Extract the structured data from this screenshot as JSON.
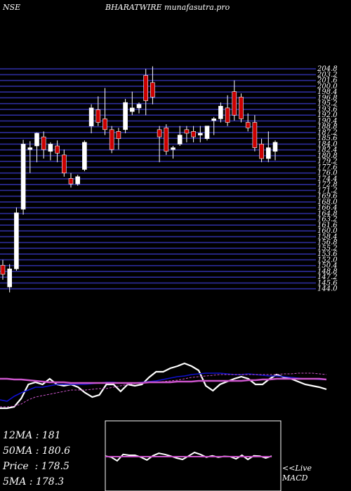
{
  "header": {
    "exchange": "NSE",
    "title": "BHARATWIRE munafasutra.pro"
  },
  "stats": [
    {
      "label": "12MA",
      "value": "181"
    },
    {
      "label": "50MA",
      "value": "180.6"
    },
    {
      "label": "Price",
      "value": "178.5"
    },
    {
      "label": "5MA",
      "value": "178.3"
    }
  ],
  "macd_label": {
    "line1": "<<Live",
    "line2": "MACD"
  },
  "colors": {
    "background": "#000000",
    "gridline": "#2d2d9c",
    "candle_up": "#ffffff",
    "candle_down": "#cc0000",
    "ma_short": "#ffffff",
    "ma_mid": "#1010d0",
    "ma_long": "#cc55cc",
    "macd_box": "#ffffff",
    "macd_signal": "#cc55cc"
  },
  "chart_data": [
    {
      "type": "candlestick",
      "ylim": [
        142,
        206
      ],
      "price_labels": [
        "204.8",
        "203.2",
        "201.6",
        "200.0",
        "198.4",
        "196.8",
        "195.2",
        "193.6",
        "192.0",
        "190.4",
        "188.8",
        "187.2",
        "185.6",
        "184.0",
        "182.4",
        "180.8",
        "179.2",
        "177.6",
        "176.0",
        "174.4",
        "172.8",
        "171.2",
        "169.6",
        "168.0",
        "166.4",
        "164.8",
        "163.2",
        "161.6",
        "160.0",
        "158.4",
        "156.8",
        "155.2",
        "153.6",
        "152.0",
        "150.4",
        "148.8",
        "147.2",
        "145.6",
        "144.0"
      ],
      "candles": [
        {
          "o": 150.5,
          "h": 152.0,
          "l": 146.5,
          "c": 148.0
        },
        {
          "o": 144.5,
          "h": 150.8,
          "l": 143.0,
          "c": 149.5
        },
        {
          "o": 149.5,
          "h": 166.5,
          "l": 149.0,
          "c": 165.0
        },
        {
          "o": 166.0,
          "h": 185.2,
          "l": 164.5,
          "c": 184.0
        },
        {
          "o": 182.5,
          "h": 184.8,
          "l": 176.0,
          "c": 183.0
        },
        {
          "o": 183.5,
          "h": 187.2,
          "l": 179.0,
          "c": 187.0
        },
        {
          "o": 186.0,
          "h": 187.5,
          "l": 180.0,
          "c": 182.5
        },
        {
          "o": 182.0,
          "h": 184.5,
          "l": 179.5,
          "c": 184.0
        },
        {
          "o": 183.5,
          "h": 185.0,
          "l": 179.0,
          "c": 181.5
        },
        {
          "o": 181.0,
          "h": 182.5,
          "l": 175.0,
          "c": 176.0
        },
        {
          "o": 174.5,
          "h": 176.0,
          "l": 172.0,
          "c": 173.0
        },
        {
          "o": 173.0,
          "h": 175.5,
          "l": 172.5,
          "c": 175.0
        },
        {
          "o": 177.0,
          "h": 185.0,
          "l": 176.5,
          "c": 184.5
        },
        {
          "o": 189.0,
          "h": 195.0,
          "l": 187.0,
          "c": 194.0
        },
        {
          "o": 193.5,
          "h": 197.2,
          "l": 189.0,
          "c": 190.0
        },
        {
          "o": 191.0,
          "h": 199.5,
          "l": 186.5,
          "c": 188.0
        },
        {
          "o": 188.0,
          "h": 189.0,
          "l": 181.5,
          "c": 182.5
        },
        {
          "o": 187.5,
          "h": 188.5,
          "l": 182.5,
          "c": 185.5
        },
        {
          "o": 188.0,
          "h": 196.5,
          "l": 187.0,
          "c": 195.5
        },
        {
          "o": 193.0,
          "h": 198.5,
          "l": 192.0,
          "c": 194.0
        },
        {
          "o": 194.0,
          "h": 195.5,
          "l": 192.5,
          "c": 195.0
        },
        {
          "o": 203.0,
          "h": 204.8,
          "l": 192.0,
          "c": 196.0
        },
        {
          "o": 201.0,
          "h": 205.5,
          "l": 195.0,
          "c": 197.0
        },
        {
          "o": 188.0,
          "h": 189.0,
          "l": 179.0,
          "c": 186.0
        },
        {
          "o": 188.5,
          "h": 189.5,
          "l": 181.0,
          "c": 182.0
        },
        {
          "o": 182.5,
          "h": 183.5,
          "l": 180.0,
          "c": 183.0
        },
        {
          "o": 184.0,
          "h": 189.0,
          "l": 183.5,
          "c": 186.5
        },
        {
          "o": 188.0,
          "h": 189.0,
          "l": 184.5,
          "c": 187.0
        },
        {
          "o": 187.5,
          "h": 189.0,
          "l": 184.5,
          "c": 186.0
        },
        {
          "o": 186.5,
          "h": 189.0,
          "l": 184.5,
          "c": 187.0
        },
        {
          "o": 185.5,
          "h": 189.0,
          "l": 185.0,
          "c": 189.0
        },
        {
          "o": 190.5,
          "h": 191.5,
          "l": 186.5,
          "c": 191.0
        },
        {
          "o": 191.0,
          "h": 195.5,
          "l": 190.0,
          "c": 194.5
        },
        {
          "o": 194.0,
          "h": 197.5,
          "l": 189.0,
          "c": 190.0
        },
        {
          "o": 198.5,
          "h": 201.6,
          "l": 190.5,
          "c": 192.0
        },
        {
          "o": 197.0,
          "h": 198.0,
          "l": 190.0,
          "c": 191.0
        },
        {
          "o": 190.0,
          "h": 192.5,
          "l": 187.5,
          "c": 188.5
        },
        {
          "o": 190.0,
          "h": 192.0,
          "l": 182.0,
          "c": 183.0
        },
        {
          "o": 184.0,
          "h": 185.5,
          "l": 179.0,
          "c": 180.0
        },
        {
          "o": 180.0,
          "h": 187.5,
          "l": 179.0,
          "c": 183.0
        },
        {
          "o": 182.0,
          "h": 185.0,
          "l": 179.5,
          "c": 184.5
        }
      ]
    },
    {
      "type": "line",
      "series": [
        {
          "values": [
            582,
            582,
            580,
            568,
            548,
            545,
            548,
            540,
            548,
            550,
            548,
            552,
            560,
            566,
            563,
            548,
            548,
            558,
            548,
            550,
            548,
            538,
            530,
            530,
            525,
            522,
            518,
            522,
            528,
            550,
            557,
            548,
            544,
            540,
            537,
            540,
            548,
            548,
            540,
            534,
            538,
            540,
            544,
            548,
            550,
            552,
            555
          ]
        },
        {
          "values": [
            570,
            572,
            565,
            560,
            556,
            552,
            552,
            550,
            548,
            548,
            548,
            548,
            548,
            547,
            546,
            545,
            545,
            546,
            546,
            546,
            545,
            544,
            543,
            541,
            539,
            537,
            536,
            534,
            533,
            532,
            532,
            532,
            533,
            534,
            534,
            533,
            534,
            535,
            536,
            536,
            537,
            538,
            539,
            540,
            540,
            541,
            541
          ]
        },
        {
          "values": [
            580,
            580,
            579,
            576,
            570,
            566,
            564,
            562,
            560,
            558,
            556,
            556,
            556,
            555,
            554,
            554,
            552,
            550,
            548,
            547,
            546,
            545,
            545,
            544,
            543,
            542,
            540,
            538,
            537,
            536,
            535,
            534,
            534,
            534,
            534,
            534,
            534,
            534,
            534,
            534,
            533,
            533,
            532,
            532,
            532,
            533,
            534
          ]
        },
        {
          "values": [
            540,
            540,
            541,
            541,
            542,
            543,
            544,
            545,
            545,
            545,
            546,
            546,
            546,
            546,
            546,
            546,
            546,
            546,
            546,
            546,
            546,
            545,
            545,
            545,
            545,
            544,
            544,
            544,
            543,
            543,
            543,
            543,
            543,
            543,
            543,
            542,
            542,
            541,
            541,
            540,
            540,
            540,
            540,
            540,
            540,
            540,
            541
          ]
        }
      ]
    },
    {
      "type": "line",
      "series": [
        {
          "values": [
            0.2,
            -0.2,
            -1.5,
            0.8,
            0.5,
            0.5,
            -0.2,
            -1.2,
            0.3,
            1.2,
            0.8,
            0.2,
            -0.5,
            -1.0,
            0.2,
            1.5,
            0.8,
            -0.2,
            0.3,
            -0.2,
            0.1,
            0.0,
            -0.8,
            0.5,
            -1.0,
            0.3,
            0.2,
            -0.5,
            0.2
          ]
        },
        {
          "values": [
            0,
            0,
            0,
            0,
            0,
            0,
            0,
            0,
            0,
            0,
            0,
            0,
            0,
            0,
            0,
            0,
            0,
            0,
            0,
            0,
            0,
            0,
            0,
            0,
            0,
            0,
            0,
            0,
            0
          ]
        }
      ]
    }
  ]
}
